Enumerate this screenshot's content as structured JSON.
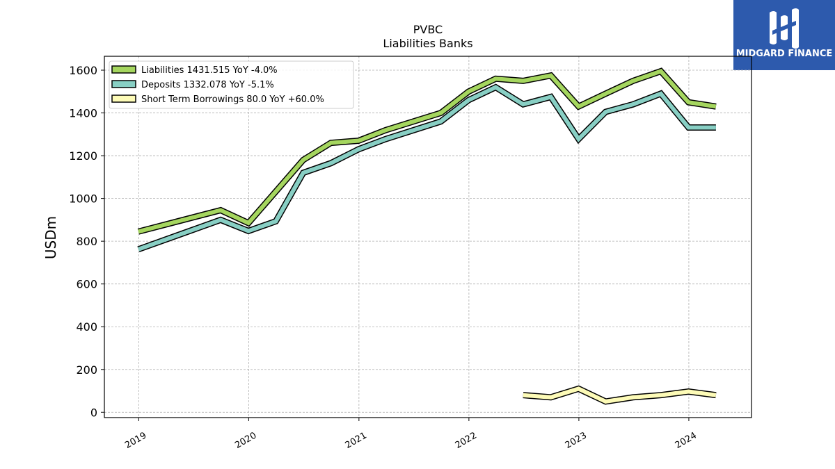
{
  "logo": {
    "text": "MIDGARD FINANCE",
    "bg_color": "#2d5aad",
    "icon": "midgard-logo-icon"
  },
  "chart_data": {
    "type": "line",
    "title": "PVBC",
    "subtitle": "Liabilities Banks",
    "xlabel": "",
    "ylabel": "USDm",
    "ylim": [
      -25,
      1665
    ],
    "yticks": [
      0,
      200,
      400,
      600,
      800,
      1000,
      1200,
      1400,
      1600
    ],
    "xlim": [
      "2018-09-09",
      "2024-07-27"
    ],
    "xticks": [
      "2019",
      "2020",
      "2021",
      "2022",
      "2023",
      "2024"
    ],
    "grid": true,
    "legend_position": "top-left",
    "series": [
      {
        "name": "Liabilities  1431.515 YoY -4.0%",
        "color": "#a5d65f",
        "points": [
          [
            "2018-12-31",
            845
          ],
          [
            "2019-09-30",
            945
          ],
          [
            "2019-12-31",
            885
          ],
          [
            "2020-06-30",
            1180
          ],
          [
            "2020-09-30",
            1260
          ],
          [
            "2020-12-31",
            1270
          ],
          [
            "2021-03-31",
            1320
          ],
          [
            "2021-09-30",
            1400
          ],
          [
            "2021-12-31",
            1500
          ],
          [
            "2022-03-31",
            1560
          ],
          [
            "2022-06-30",
            1550
          ],
          [
            "2022-09-30",
            1575
          ],
          [
            "2022-12-31",
            1430
          ],
          [
            "2023-03-31",
            1490
          ],
          [
            "2023-06-30",
            1550
          ],
          [
            "2023-09-30",
            1595
          ],
          [
            "2023-12-31",
            1450
          ],
          [
            "2024-03-31",
            1430
          ]
        ]
      },
      {
        "name": "Deposits  1332.078 YoY -5.1%",
        "color": "#88cfc4",
        "points": [
          [
            "2018-12-31",
            762
          ],
          [
            "2019-09-30",
            900
          ],
          [
            "2019-12-31",
            848
          ],
          [
            "2020-03-31",
            893
          ],
          [
            "2020-06-30",
            1120
          ],
          [
            "2020-09-30",
            1165
          ],
          [
            "2020-12-31",
            1230
          ],
          [
            "2021-03-31",
            1278
          ],
          [
            "2021-09-30",
            1360
          ],
          [
            "2021-12-31",
            1460
          ],
          [
            "2022-03-31",
            1520
          ],
          [
            "2022-06-30",
            1440
          ],
          [
            "2022-09-30",
            1475
          ],
          [
            "2022-12-31",
            1278
          ],
          [
            "2023-03-31",
            1405
          ],
          [
            "2023-06-30",
            1440
          ],
          [
            "2023-09-30",
            1490
          ],
          [
            "2023-12-31",
            1332
          ],
          [
            "2024-03-31",
            1332
          ]
        ]
      },
      {
        "name": "Short Term Borrowings  80.0 YoY +60.0%",
        "color": "#fdfbb7",
        "points": [
          [
            "2022-06-30",
            80
          ],
          [
            "2022-09-30",
            70
          ],
          [
            "2022-12-31",
            110
          ],
          [
            "2023-03-31",
            50
          ],
          [
            "2023-06-30",
            70
          ],
          [
            "2023-09-30",
            80
          ],
          [
            "2023-12-31",
            97
          ],
          [
            "2024-03-31",
            80
          ]
        ]
      }
    ]
  }
}
